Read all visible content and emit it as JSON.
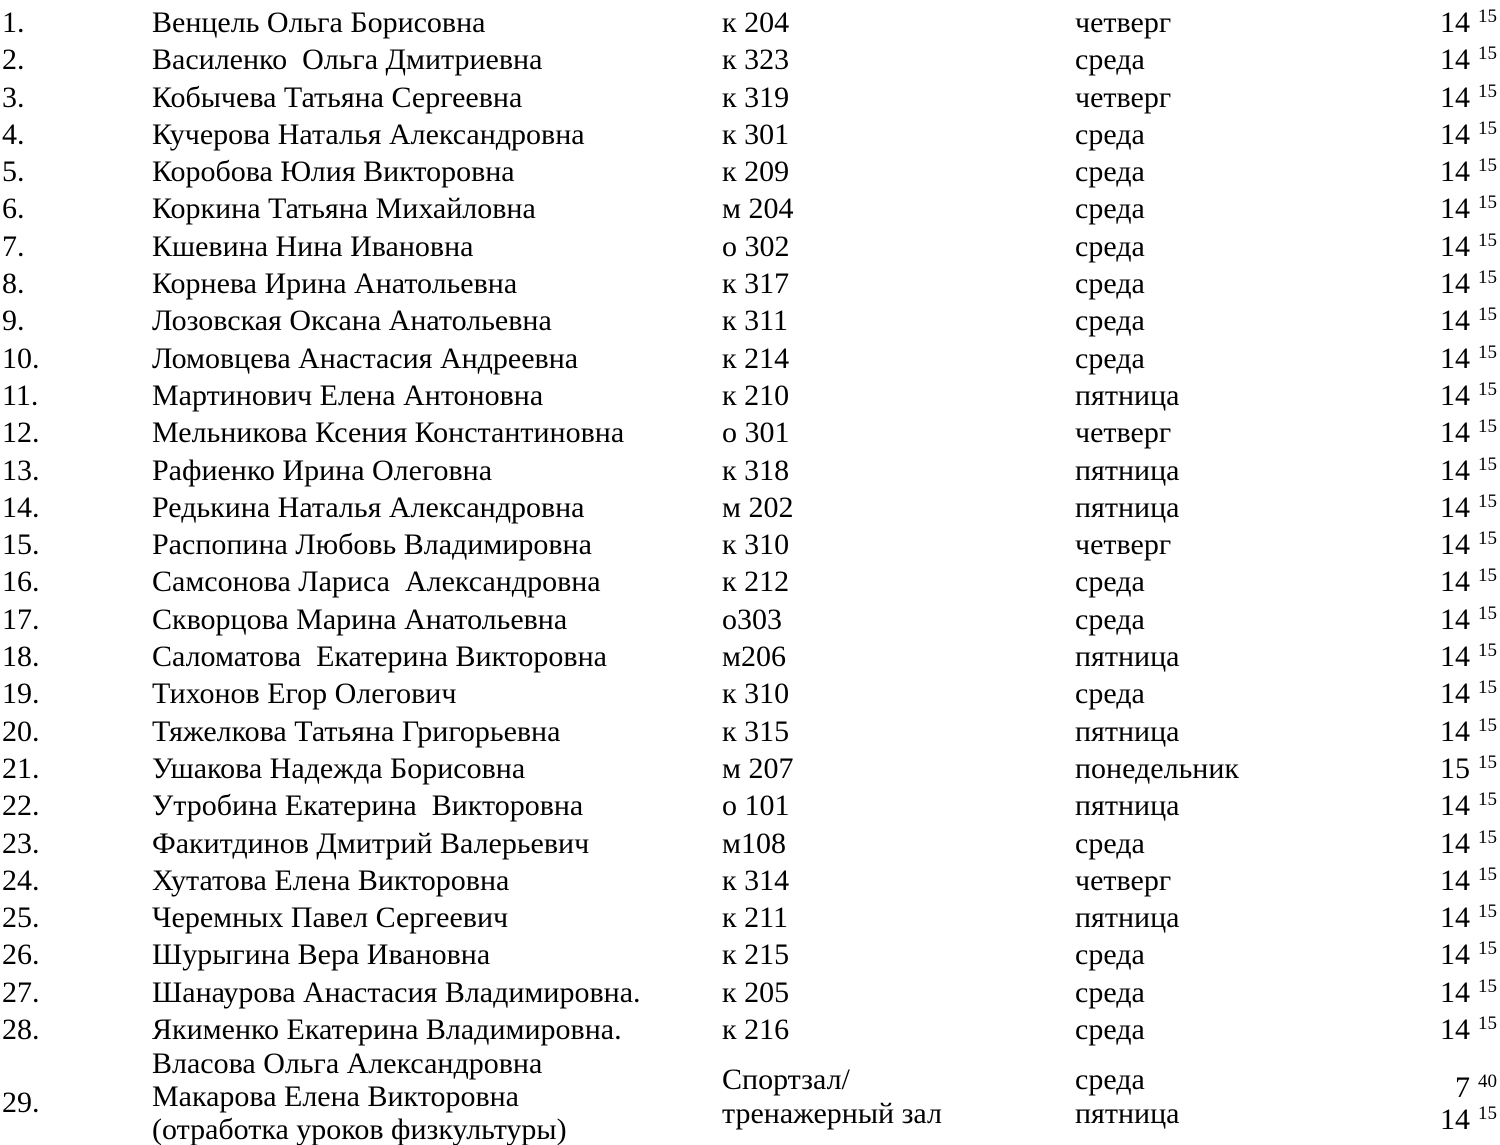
{
  "page": {
    "background": "#ffffff",
    "text_color": "#000000"
  },
  "table": {
    "columns": [
      "number",
      "name",
      "room",
      "day",
      "time"
    ],
    "rows": [
      {
        "num": "1.",
        "name": "Венцель Ольга Борисовна",
        "room": "к 204",
        "day": "четверг",
        "hour": "14",
        "min": "15"
      },
      {
        "num": "2.",
        "name": "Василенко  Ольга Дмитриевна",
        "room": "к 323",
        "day": "среда",
        "hour": "14",
        "min": "15"
      },
      {
        "num": "3.",
        "name": "Кобычева Татьяна Сергеевна",
        "room": "к 319",
        "day": "четверг",
        "hour": "14",
        "min": "15"
      },
      {
        "num": "4.",
        "name": "Кучерова Наталья Александровна",
        "room": "к 301",
        "day": "среда",
        "hour": "14",
        "min": "15"
      },
      {
        "num": "5.",
        "name": "Коробова Юлия Викторовна",
        "room": "к 209",
        "day": "среда",
        "hour": "14",
        "min": "15"
      },
      {
        "num": "6.",
        "name": "Коркина Татьяна Михайловна",
        "room": "м 204",
        "day": "среда",
        "hour": "14",
        "min": "15"
      },
      {
        "num": "7.",
        "name": "Кшевина Нина Ивановна",
        "room": "о 302",
        "day": "среда",
        "hour": "14",
        "min": "15"
      },
      {
        "num": "8.",
        "name": "Корнева Ирина Анатольевна",
        "room": "к 317",
        "day": "среда",
        "hour": "14",
        "min": "15"
      },
      {
        "num": "9.",
        "name": "Лозовская Оксана Анатольевна",
        "room": "к 311",
        "day": "среда",
        "hour": "14",
        "min": "15"
      },
      {
        "num": "10.",
        "name": "Ломовцева Анастасия Андреевна",
        "room": "к 214",
        "day": "среда",
        "hour": "14",
        "min": "15"
      },
      {
        "num": "11.",
        "name": "Мартинович Елена Антоновна",
        "room": "к 210",
        "day": "пятница",
        "hour": "14",
        "min": "15"
      },
      {
        "num": "12.",
        "name": "Мельникова Ксения Константиновна",
        "room": "о 301",
        "day": "четверг",
        "hour": "14",
        "min": "15"
      },
      {
        "num": "13.",
        "name": "Рафиенко Ирина Олеговна",
        "room": "к 318",
        "day": "пятница",
        "hour": "14",
        "min": "15"
      },
      {
        "num": "14.",
        "name": "Редькина Наталья Александровна",
        "room": "м 202",
        "day": "пятница",
        "hour": "14",
        "min": "15"
      },
      {
        "num": "15.",
        "name": "Распопина Любовь Владимировна",
        "room": "к 310",
        "day": "четверг",
        "hour": "14",
        "min": "15"
      },
      {
        "num": "16.",
        "name": "Самсонова Лариса  Александровна",
        "room": "к 212",
        "day": "среда",
        "hour": "14",
        "min": "15"
      },
      {
        "num": "17.",
        "name": "Скворцова Марина Анатольевна",
        "room": "о303",
        "day": "среда",
        "hour": "14",
        "min": "15"
      },
      {
        "num": "18.",
        "name": "Саломатова  Екатерина Викторовна",
        "room": "м206",
        "day": "пятница",
        "hour": "14",
        "min": "15"
      },
      {
        "num": "19.",
        "name": "Тихонов Егор Олегович",
        "room": "к 310",
        "day": "среда",
        "hour": "14",
        "min": "15"
      },
      {
        "num": "20.",
        "name": "Тяжелкова Татьяна Григорьевна",
        "room": "к 315",
        "day": "пятница",
        "hour": "14",
        "min": "15"
      },
      {
        "num": "21.",
        "name": "Ушакова Надежда Борисовна",
        "room": "м 207",
        "day": "понедельник",
        "hour": "15",
        "min": "15"
      },
      {
        "num": "22.",
        "name": "Утробина Екатерина  Викторовна",
        "room": "о 101",
        "day": "пятница",
        "hour": "14",
        "min": "15"
      },
      {
        "num": "23.",
        "name": "Факитдинов Дмитрий Валерьевич",
        "room": "м108",
        "day": "среда",
        "hour": "14",
        "min": "15"
      },
      {
        "num": "24.",
        "name": "Хутатова Елена Викторовна",
        "room": "к 314",
        "day": "четверг",
        "hour": "14",
        "min": "15"
      },
      {
        "num": "25.",
        "name": "Черемных Павел Сергеевич",
        "room": "к 211",
        "day": "пятница",
        "hour": "14",
        "min": "15"
      },
      {
        "num": "26.",
        "name": "Шурыгина Вера Ивановна",
        "room": "к 215",
        "day": "среда",
        "hour": "14",
        "min": "15"
      },
      {
        "num": "27.",
        "name": "Шанаурова Анастасия Владимировна.",
        "room": "к 205",
        "day": "среда",
        "hour": "14",
        "min": "15"
      },
      {
        "num": "28.",
        "name": "Якименко Екатерина Владимировна.",
        "room": "к 216",
        "day": "среда",
        "hour": "14",
        "min": "15"
      }
    ],
    "last_row": {
      "num": "29.",
      "name_lines": [
        "Власова Ольга Александровна",
        "Макарова Елена Викторовна",
        "(отработка уроков физкультуры)"
      ],
      "room_lines": [
        "Спортзал/",
        "тренажерный зал"
      ],
      "day_lines": [
        "среда",
        "пятница"
      ],
      "times": [
        {
          "hour": "7",
          "min": "40"
        },
        {
          "hour": "14",
          "min": "15"
        }
      ]
    }
  }
}
